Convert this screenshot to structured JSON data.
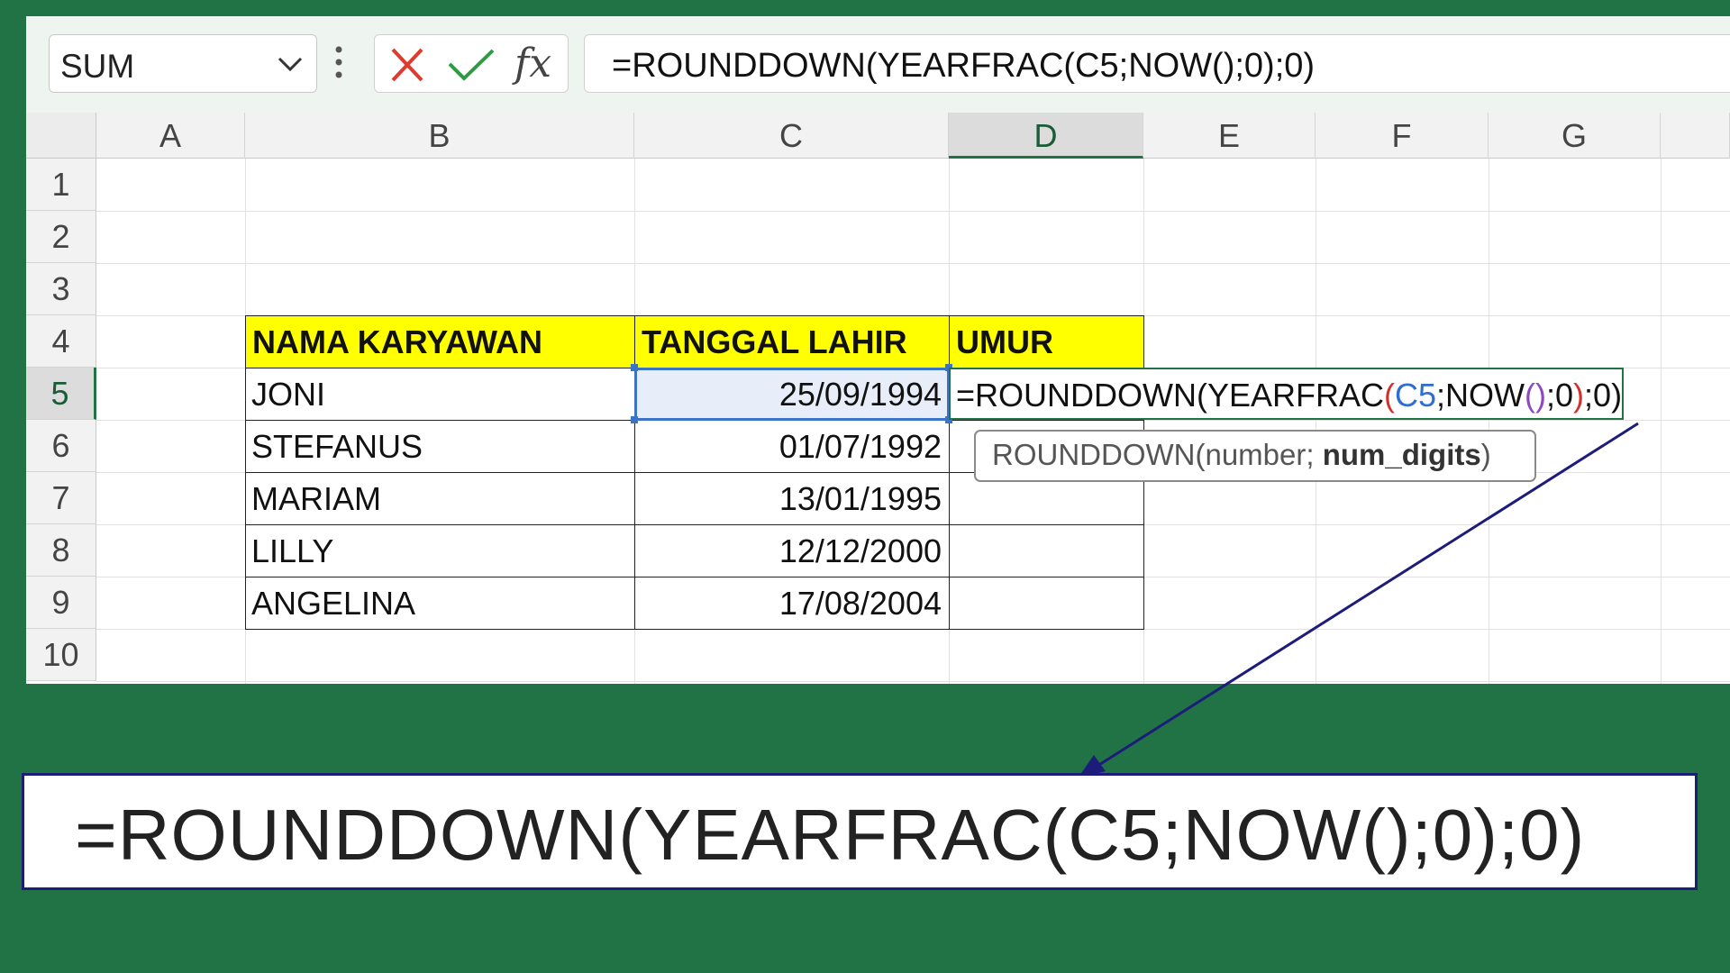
{
  "formula_bar": {
    "name_box": "SUM",
    "formula": "=ROUNDDOWN(YEARFRAC(C5;NOW();0);0)",
    "fx_label": "fx"
  },
  "columns": [
    "A",
    "B",
    "C",
    "D",
    "E",
    "F",
    "G"
  ],
  "active_column": "D",
  "rows": [
    "1",
    "2",
    "3",
    "4",
    "5",
    "6",
    "7",
    "8",
    "9",
    "10"
  ],
  "active_row": "5",
  "table": {
    "headers": [
      "NAMA KARYAWAN",
      "TANGGAL LAHIR",
      "UMUR"
    ],
    "rows": [
      {
        "name": "JONI",
        "date": "25/09/1994",
        "umur": ""
      },
      {
        "name": "STEFANUS",
        "date": "01/07/1992",
        "umur": ""
      },
      {
        "name": "MARIAM",
        "date": "13/01/1995",
        "umur": ""
      },
      {
        "name": "LILLY",
        "date": "12/12/2000",
        "umur": ""
      },
      {
        "name": "ANGELINA",
        "date": "17/08/2004",
        "umur": ""
      }
    ]
  },
  "editing": {
    "p1": "=ROUNDDOWN(YEARFRAC",
    "p2": "(",
    "p3": "C5",
    "p4": ";NOW",
    "p5": "()",
    "p6": ";0",
    "p7": ")",
    "p8": ";0)"
  },
  "tooltip": {
    "func": "ROUNDDOWN(number; ",
    "bold": "num_digits",
    "close": ")"
  },
  "callout": {
    "formula": "=ROUNDDOWN(YEARFRAC(C5;NOW();0);0)"
  },
  "colors": {
    "background": "#217346",
    "header_fill": "#ffff00",
    "reference_blue": "#2f6ed1",
    "arrow": "#1c1c7a"
  }
}
